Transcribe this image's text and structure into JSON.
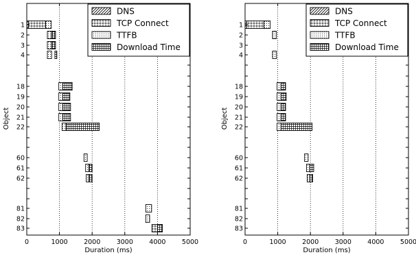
{
  "chart_data": [
    {
      "type": "gantt-bar",
      "xlabel": "Duration (ms)",
      "ylabel": "Object",
      "xlim": [
        0,
        5000
      ],
      "xticks": [
        "0",
        "1000",
        "2000",
        "3000",
        "4000",
        "5000"
      ],
      "grid": "vertical dotted at 1000, 2000, 3000, 4000",
      "legend_position": "top-right",
      "legend": [
        {
          "name": "DNS",
          "pattern": "diagonal"
        },
        {
          "name": "TCP Connect",
          "pattern": "circles"
        },
        {
          "name": "TTFB",
          "pattern": "dots"
        },
        {
          "name": "Download Time",
          "pattern": "grid"
        }
      ],
      "categories": [
        "1",
        "2",
        "3",
        "4",
        "18",
        "19",
        "20",
        "21",
        "22",
        "60",
        "61",
        "62",
        "81",
        "82",
        "83"
      ],
      "objects": [
        {
          "label": "1",
          "segments": [
            {
              "phase": "DNS",
              "start": 0,
              "end": 50
            },
            {
              "phase": "TCP Connect",
              "start": 50,
              "end": 580
            },
            {
              "phase": "TTFB",
              "start": 580,
              "end": 750
            }
          ]
        },
        {
          "label": "2",
          "segments": [
            {
              "phase": "TTFB",
              "start": 630,
              "end": 760
            },
            {
              "phase": "Download Time",
              "start": 760,
              "end": 880
            }
          ]
        },
        {
          "label": "3",
          "segments": [
            {
              "phase": "TTFB",
              "start": 630,
              "end": 760
            },
            {
              "phase": "Download Time",
              "start": 760,
              "end": 880
            }
          ]
        },
        {
          "label": "4",
          "segments": [
            {
              "phase": "TTFB",
              "start": 630,
              "end": 760
            },
            {
              "phase": "Download Time",
              "start": 860,
              "end": 920
            }
          ]
        },
        {
          "label": "18",
          "segments": [
            {
              "phase": "TTFB",
              "start": 980,
              "end": 1100
            },
            {
              "phase": "Download Time",
              "start": 1100,
              "end": 1390
            }
          ]
        },
        {
          "label": "19",
          "segments": [
            {
              "phase": "TTFB",
              "start": 980,
              "end": 1100
            },
            {
              "phase": "Download Time",
              "start": 1100,
              "end": 1320
            }
          ]
        },
        {
          "label": "20",
          "segments": [
            {
              "phase": "TTFB",
              "start": 980,
              "end": 1100
            },
            {
              "phase": "Download Time",
              "start": 1100,
              "end": 1340
            }
          ]
        },
        {
          "label": "21",
          "segments": [
            {
              "phase": "TTFB",
              "start": 980,
              "end": 1100
            },
            {
              "phase": "Download Time",
              "start": 1100,
              "end": 1340
            }
          ]
        },
        {
          "label": "22",
          "segments": [
            {
              "phase": "TTFB",
              "start": 1080,
              "end": 1200
            },
            {
              "phase": "Download Time",
              "start": 1200,
              "end": 2220
            }
          ]
        },
        {
          "label": "60",
          "segments": [
            {
              "phase": "TTFB",
              "start": 1750,
              "end": 1850
            }
          ]
        },
        {
          "label": "61",
          "segments": [
            {
              "phase": "TTFB",
              "start": 1800,
              "end": 1900
            },
            {
              "phase": "Download Time",
              "start": 1900,
              "end": 2000
            }
          ]
        },
        {
          "label": "62",
          "segments": [
            {
              "phase": "TTFB",
              "start": 1820,
              "end": 1900
            },
            {
              "phase": "Download Time",
              "start": 1900,
              "end": 2000
            }
          ]
        },
        {
          "label": "81",
          "segments": [
            {
              "phase": "TTFB",
              "start": 3640,
              "end": 3820
            }
          ]
        },
        {
          "label": "82",
          "segments": [
            {
              "phase": "TTFB",
              "start": 3640,
              "end": 3760
            }
          ]
        },
        {
          "label": "83",
          "segments": [
            {
              "phase": "TCP Connect",
              "start": 3830,
              "end": 4000
            },
            {
              "phase": "Download Time",
              "start": 4000,
              "end": 4150
            }
          ]
        }
      ]
    },
    {
      "type": "gantt-bar",
      "xlabel": "Duration (ms)",
      "ylabel": "Object",
      "xlim": [
        0,
        5000
      ],
      "xticks": [
        "0",
        "1000",
        "2000",
        "3000",
        "4000",
        "5000"
      ],
      "grid": "vertical dotted at 1000, 2000, 3000, 4000",
      "legend_position": "top-right",
      "legend": [
        {
          "name": "DNS",
          "pattern": "diagonal"
        },
        {
          "name": "TCP Connect",
          "pattern": "circles"
        },
        {
          "name": "TTFB",
          "pattern": "dots"
        },
        {
          "name": "Download Time",
          "pattern": "grid"
        }
      ],
      "categories": [
        "1",
        "2",
        "3",
        "4",
        "18",
        "19",
        "20",
        "21",
        "22",
        "60",
        "61",
        "62",
        "81",
        "82",
        "83"
      ],
      "objects": [
        {
          "label": "1",
          "segments": [
            {
              "phase": "DNS",
              "start": 0,
              "end": 50
            },
            {
              "phase": "TCP Connect",
              "start": 50,
              "end": 580
            },
            {
              "phase": "TTFB",
              "start": 580,
              "end": 770
            }
          ]
        },
        {
          "label": "2",
          "segments": [
            {
              "phase": "TTFB",
              "start": 840,
              "end": 960
            }
          ]
        },
        {
          "label": "3",
          "segments": []
        },
        {
          "label": "4",
          "segments": [
            {
              "phase": "TTFB",
              "start": 840,
              "end": 960
            }
          ]
        },
        {
          "label": "18",
          "segments": [
            {
              "phase": "TTFB",
              "start": 980,
              "end": 1100
            },
            {
              "phase": "Download Time",
              "start": 1100,
              "end": 1240
            }
          ]
        },
        {
          "label": "19",
          "segments": [
            {
              "phase": "TTFB",
              "start": 980,
              "end": 1100
            },
            {
              "phase": "Download Time",
              "start": 1100,
              "end": 1260
            }
          ]
        },
        {
          "label": "20",
          "segments": [
            {
              "phase": "TTFB",
              "start": 980,
              "end": 1100
            },
            {
              "phase": "Download Time",
              "start": 1100,
              "end": 1240
            }
          ]
        },
        {
          "label": "21",
          "segments": [
            {
              "phase": "TTFB",
              "start": 980,
              "end": 1100
            },
            {
              "phase": "Download Time",
              "start": 1100,
              "end": 1240
            }
          ]
        },
        {
          "label": "22",
          "segments": [
            {
              "phase": "TTFB",
              "start": 980,
              "end": 1100
            },
            {
              "phase": "Download Time",
              "start": 1100,
              "end": 2050
            }
          ]
        },
        {
          "label": "60",
          "segments": [
            {
              "phase": "TTFB",
              "start": 1820,
              "end": 1930
            }
          ]
        },
        {
          "label": "61",
          "segments": [
            {
              "phase": "TTFB",
              "start": 1880,
              "end": 1980
            },
            {
              "phase": "Download Time",
              "start": 1980,
              "end": 2100
            }
          ]
        },
        {
          "label": "62",
          "segments": [
            {
              "phase": "TTFB",
              "start": 1900,
              "end": 1980
            },
            {
              "phase": "Download Time",
              "start": 1980,
              "end": 2070
            }
          ]
        },
        {
          "label": "81",
          "segments": []
        },
        {
          "label": "82",
          "segments": []
        },
        {
          "label": "83",
          "segments": []
        }
      ]
    }
  ]
}
